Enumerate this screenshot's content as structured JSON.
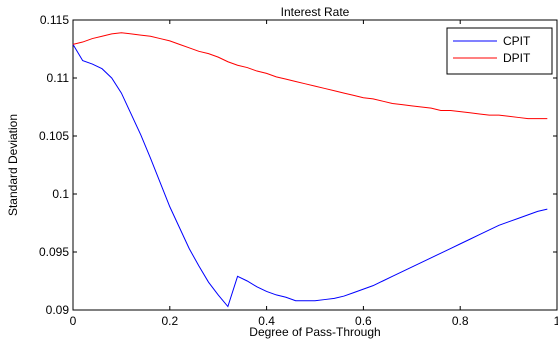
{
  "chart_data": {
    "type": "line",
    "title": "Interest Rate",
    "xlabel": "Degree of Pass-Through",
    "ylabel": "Standard Deviation",
    "xlim": [
      0,
      1
    ],
    "ylim": [
      0.09,
      0.115
    ],
    "xticks": [
      0,
      0.2,
      0.4,
      0.6,
      0.8,
      1
    ],
    "xtick_labels": [
      "0",
      "0.2",
      "0.4",
      "0.6",
      "0.8",
      "1"
    ],
    "yticks": [
      0.09,
      0.095,
      0.1,
      0.105,
      0.11,
      0.115
    ],
    "ytick_labels": [
      "0.09",
      "0.095",
      "0.1",
      "0.105",
      "0.11",
      "0.115"
    ],
    "grid": false,
    "legend_position": "top-right",
    "series": [
      {
        "name": "CPIT",
        "color": "#0000ff",
        "x": [
          0,
          0.02,
          0.04,
          0.06,
          0.08,
          0.1,
          0.12,
          0.14,
          0.16,
          0.18,
          0.2,
          0.22,
          0.24,
          0.26,
          0.28,
          0.3,
          0.32,
          0.34,
          0.36,
          0.38,
          0.4,
          0.42,
          0.44,
          0.46,
          0.48,
          0.5,
          0.52,
          0.54,
          0.56,
          0.58,
          0.6,
          0.62,
          0.64,
          0.66,
          0.68,
          0.7,
          0.72,
          0.74,
          0.76,
          0.78,
          0.8,
          0.82,
          0.84,
          0.86,
          0.88,
          0.9,
          0.92,
          0.94,
          0.96,
          0.98
        ],
        "y": [
          0.1129,
          0.1115,
          0.1112,
          0.1108,
          0.11,
          0.1087,
          0.1069,
          0.1051,
          0.1031,
          0.101,
          0.0989,
          0.0971,
          0.0953,
          0.0938,
          0.0924,
          0.0913,
          0.0903,
          0.0929,
          0.0925,
          0.092,
          0.0916,
          0.0913,
          0.0911,
          0.0908,
          0.0908,
          0.0908,
          0.0909,
          0.091,
          0.0912,
          0.0915,
          0.0918,
          0.0921,
          0.0925,
          0.0929,
          0.0933,
          0.0937,
          0.0941,
          0.0945,
          0.0949,
          0.0953,
          0.0957,
          0.0961,
          0.0965,
          0.0969,
          0.0973,
          0.0976,
          0.0979,
          0.0982,
          0.0985,
          0.0987
        ]
      },
      {
        "name": "DPIT",
        "color": "#ff0000",
        "x": [
          0,
          0.02,
          0.04,
          0.06,
          0.08,
          0.1,
          0.12,
          0.14,
          0.16,
          0.18,
          0.2,
          0.22,
          0.24,
          0.26,
          0.28,
          0.3,
          0.32,
          0.34,
          0.36,
          0.38,
          0.4,
          0.42,
          0.44,
          0.46,
          0.48,
          0.5,
          0.52,
          0.54,
          0.56,
          0.58,
          0.6,
          0.62,
          0.64,
          0.66,
          0.68,
          0.7,
          0.72,
          0.74,
          0.76,
          0.78,
          0.8,
          0.82,
          0.84,
          0.86,
          0.88,
          0.9,
          0.92,
          0.94,
          0.96,
          0.98
        ],
        "y": [
          0.1129,
          0.1131,
          0.1134,
          0.1136,
          0.1138,
          0.1139,
          0.1138,
          0.1137,
          0.1136,
          0.1134,
          0.1132,
          0.1129,
          0.1126,
          0.1123,
          0.1121,
          0.1118,
          0.1114,
          0.1111,
          0.1109,
          0.1106,
          0.1104,
          0.1101,
          0.1099,
          0.1097,
          0.1095,
          0.1093,
          0.1091,
          0.1089,
          0.1087,
          0.1085,
          0.1083,
          0.1082,
          0.108,
          0.1078,
          0.1077,
          0.1076,
          0.1075,
          0.1074,
          0.1072,
          0.1072,
          0.1071,
          0.107,
          0.1069,
          0.1068,
          0.1068,
          0.1067,
          0.1066,
          0.1065,
          0.1065,
          0.1065
        ]
      }
    ]
  }
}
